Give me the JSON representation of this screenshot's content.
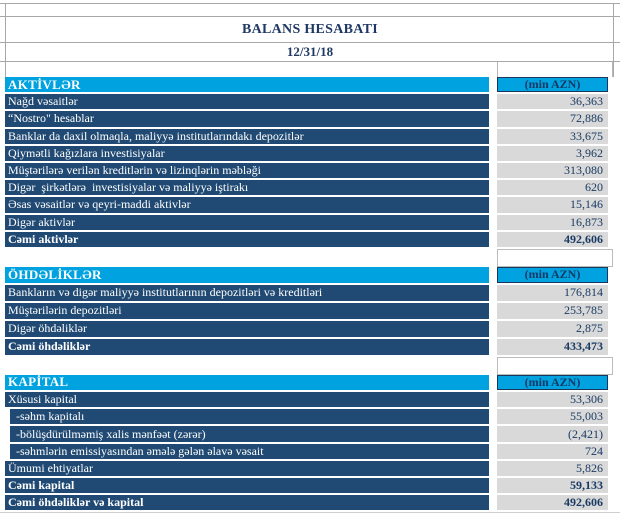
{
  "header": {
    "title": "BALANS HESABATI",
    "date": "12/31/18"
  },
  "colors": {
    "section_header_bg": "#00A2E0",
    "row_bg": "#204A73",
    "value_bg": "#D9D9D9",
    "text_navy": "#1F3864",
    "row_text": "#FFFFFF"
  },
  "sections": [
    {
      "id": "aktivler",
      "name": "AKTİVLƏR",
      "unit": "(min AZN)",
      "rows": [
        {
          "label": "Nağd vəsaitlər",
          "value": "36,363"
        },
        {
          "label": "“Nostro\" hesablar",
          "value": "72,886"
        },
        {
          "label": "Banklar da daxil olmaqla, maliyyə institutlarındakı depozitlər",
          "value": "33,675"
        },
        {
          "label": "Qiymətli kağızlara investisiyalar",
          "value": "3,962"
        },
        {
          "label": "Müştərilərə verilən kreditlərin və lizinqlərin məbləği",
          "value": "313,080"
        },
        {
          "label": "Digər  şirkətlərə  investisiyalar və maliyyə iştirakı",
          "value": "620"
        },
        {
          "label": "Əsas vəsaitlər və qeyri-maddi aktivlər",
          "value": "15,146"
        },
        {
          "label": "Digər aktivlər",
          "value": "16,873"
        },
        {
          "label": "Cəmi aktivlər",
          "value": "492,606",
          "bold": true
        }
      ]
    },
    {
      "id": "ohdelikler",
      "name": "ÖHDƏLİKLƏR",
      "unit": "(min AZN)",
      "rows": [
        {
          "label": "Bankların və digər maliyyə institutlarının depozitləri və kreditləri",
          "value": "176,814"
        },
        {
          "label": "Müştərilərin depozitləri",
          "value": "253,785"
        },
        {
          "label": "Digər öhdəliklər",
          "value": "2,875"
        },
        {
          "label": "Cəmi öhdəliklər",
          "value": "433,473",
          "bold": true
        }
      ]
    },
    {
      "id": "kapital",
      "name": "KAPİTAL",
      "unit": "(min AZN)",
      "rows": [
        {
          "label": "Xüsusi kapital",
          "value": "53,306"
        },
        {
          "label": "-səhm kapitalı",
          "value": "55,003",
          "indent": true
        },
        {
          "label": "-bölüşdürülməmiş xalis mənfəət (zərər)",
          "value": "(2,421)",
          "indent": true
        },
        {
          "label": "-səhmlərin emissiyasından əmələ gələn əlavə vəsait",
          "value": "724",
          "indent": true
        },
        {
          "label": "Ümumi ehtiyatlar",
          "value": "5,826"
        },
        {
          "label": "Cəmi kapital",
          "value": "59,133",
          "bold": true
        },
        {
          "label": "Cəmi öhdəliklər və kapital",
          "value": "492,606",
          "bold": true
        }
      ]
    }
  ]
}
